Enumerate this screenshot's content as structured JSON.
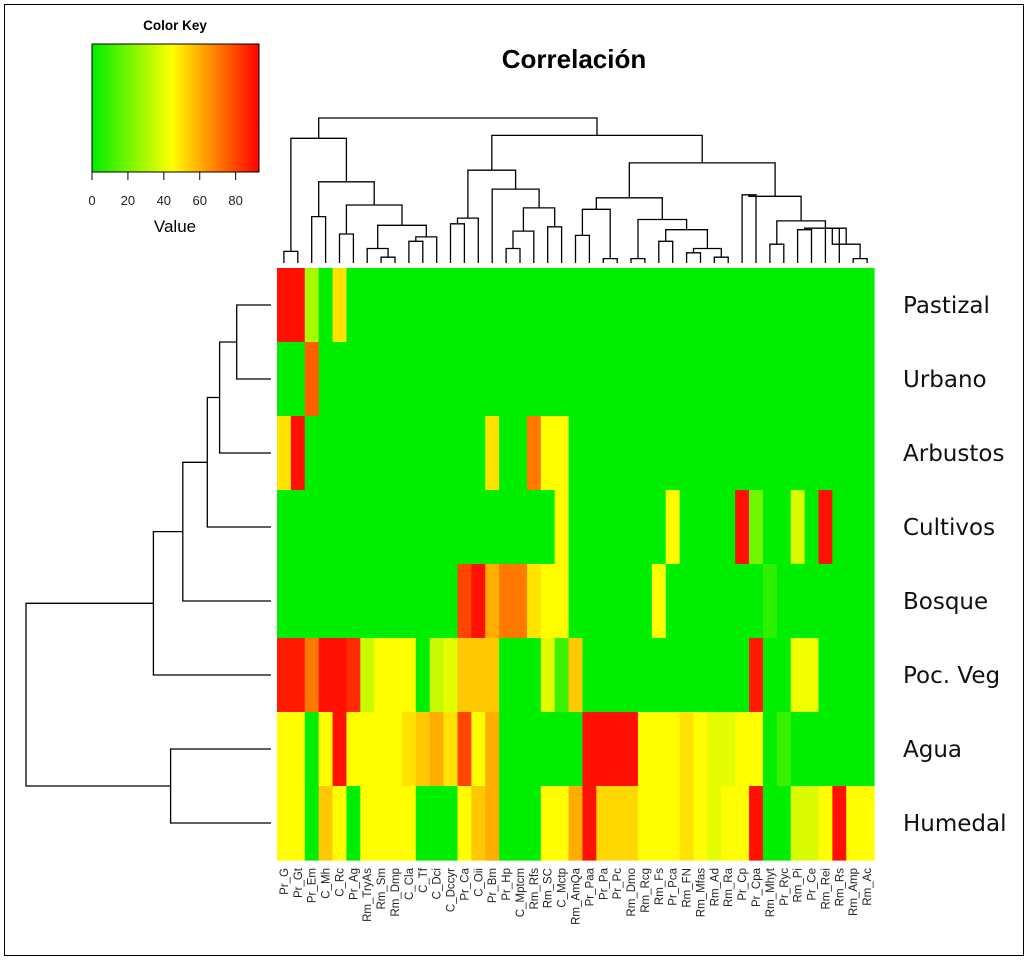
{
  "chart_data": {
    "type": "heatmap",
    "title": "Correlación",
    "color_key": {
      "title": "Color Key",
      "label": "Value",
      "ticks": [
        0,
        20,
        40,
        60,
        80
      ],
      "range": [
        0,
        93
      ],
      "colors": [
        "#00ee00",
        "#ffff00",
        "#ff0000"
      ]
    },
    "rows": [
      "Pastizal",
      "Urbano",
      "Arbustos",
      "Cultivos",
      "Bosque",
      "Poc. Veg",
      "Agua",
      "Humedal"
    ],
    "columns": [
      "Pr_G",
      "Pr_Gt",
      "Pr_Em",
      "C_Mh",
      "C_Rc",
      "Pr_Ag",
      "Rm_TryAs",
      "Rm_Sm",
      "Rm_Dmp",
      "C_Cla",
      "C_Tf",
      "C_Dci",
      "C_Dccyr",
      "Pr_Ca",
      "C_Oii",
      "Pr_Bm",
      "Pr_Hp",
      "C_Mptcm",
      "Rm_Rfs",
      "Rm_SC",
      "C_Mctp",
      "Rm_AmQa",
      "Pr_Paa",
      "Pr_Pa",
      "Pr_Pc",
      "Rm_Dmo",
      "Rm_Rcg",
      "Rm_Fs",
      "Pr_Pca",
      "Rm_FN",
      "Rm_Mfas",
      "Rm_Ad",
      "Rm_Ra",
      "Pr_Cp",
      "Pr_Cpa",
      "Rm_Mhyt",
      "Pr_Ryc",
      "Rm_Pi",
      "Pr_Ce",
      "Rm_Rei",
      "Rm_Rs",
      "Rm_Amp",
      "Rm_Ac"
    ],
    "values": [
      [
        90,
        90,
        30,
        0,
        50,
        0,
        0,
        0,
        0,
        0,
        0,
        0,
        0,
        0,
        0,
        0,
        0,
        0,
        0,
        0,
        0,
        0,
        0,
        0,
        0,
        0,
        0,
        0,
        0,
        0,
        0,
        0,
        0,
        0,
        0,
        0,
        0,
        0,
        0,
        0,
        0,
        0,
        0
      ],
      [
        0,
        0,
        75,
        0,
        0,
        0,
        0,
        0,
        0,
        0,
        0,
        0,
        0,
        0,
        0,
        0,
        0,
        0,
        0,
        0,
        0,
        0,
        0,
        0,
        0,
        0,
        0,
        0,
        0,
        0,
        0,
        0,
        0,
        0,
        0,
        0,
        0,
        0,
        0,
        0,
        0,
        0,
        0
      ],
      [
        50,
        90,
        0,
        0,
        0,
        0,
        0,
        0,
        0,
        0,
        0,
        0,
        0,
        0,
        0,
        50,
        0,
        0,
        70,
        45,
        45,
        0,
        0,
        0,
        0,
        0,
        0,
        0,
        0,
        0,
        0,
        0,
        0,
        0,
        0,
        0,
        0,
        0,
        0,
        0,
        0,
        0,
        0
      ],
      [
        0,
        0,
        0,
        0,
        0,
        0,
        0,
        0,
        0,
        0,
        0,
        0,
        0,
        0,
        0,
        0,
        0,
        0,
        0,
        0,
        45,
        0,
        0,
        0,
        0,
        0,
        0,
        0,
        45,
        0,
        0,
        0,
        0,
        90,
        20,
        0,
        0,
        38,
        0,
        90,
        0,
        0,
        0
      ],
      [
        0,
        0,
        0,
        0,
        0,
        0,
        0,
        0,
        0,
        0,
        0,
        0,
        0,
        80,
        90,
        60,
        70,
        70,
        50,
        45,
        45,
        0,
        0,
        0,
        0,
        0,
        0,
        45,
        0,
        0,
        0,
        0,
        0,
        0,
        0,
        8,
        0,
        0,
        0,
        0,
        0,
        0,
        0
      ],
      [
        88,
        88,
        70,
        90,
        90,
        85,
        35,
        45,
        45,
        45,
        0,
        35,
        40,
        55,
        55,
        55,
        0,
        0,
        0,
        40,
        10,
        55,
        0,
        0,
        0,
        0,
        0,
        0,
        0,
        0,
        0,
        0,
        0,
        0,
        88,
        0,
        0,
        42,
        42,
        0,
        0,
        0,
        0
      ],
      [
        45,
        45,
        0,
        45,
        90,
        45,
        45,
        45,
        45,
        50,
        55,
        60,
        50,
        80,
        45,
        60,
        0,
        0,
        0,
        0,
        0,
        0,
        90,
        90,
        90,
        90,
        45,
        45,
        45,
        50,
        45,
        40,
        40,
        45,
        45,
        0,
        10,
        0,
        0,
        0,
        0,
        0,
        0
      ],
      [
        45,
        45,
        0,
        55,
        45,
        0,
        45,
        45,
        45,
        45,
        0,
        0,
        0,
        45,
        55,
        60,
        0,
        0,
        0,
        45,
        45,
        60,
        90,
        52,
        52,
        52,
        45,
        45,
        45,
        50,
        45,
        40,
        45,
        45,
        90,
        0,
        0,
        38,
        38,
        45,
        90,
        45,
        45
      ]
    ]
  }
}
